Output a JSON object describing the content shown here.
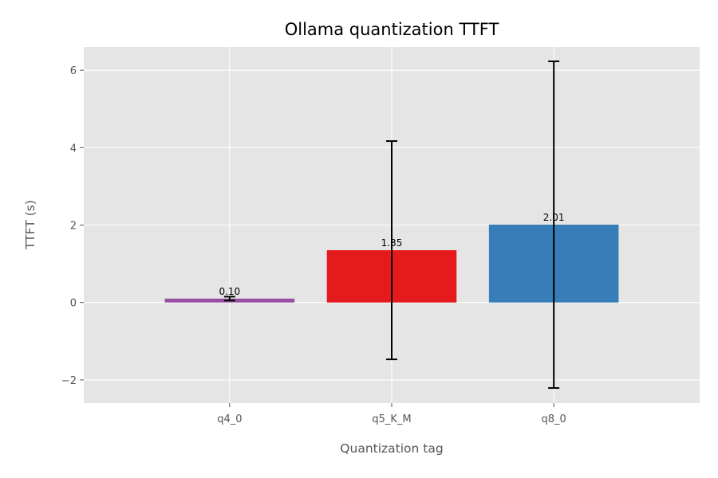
{
  "chart_data": {
    "type": "bar",
    "title": "Ollama quantization TTFT",
    "xlabel": "Quantization tag",
    "ylabel": "TTFT (s)",
    "categories": [
      "q4_0",
      "q5_K_M",
      "q8_0"
    ],
    "values": [
      0.1,
      1.35,
      2.01
    ],
    "data_labels": [
      "0.10",
      "1.35",
      "2.01"
    ],
    "error": [
      0.05,
      2.82,
      4.22
    ],
    "colors": [
      "#984ea3",
      "#e41a1c",
      "#377eb8"
    ],
    "ylim": [
      -2.6,
      6.6
    ],
    "yticks": [
      -2,
      0,
      2,
      4,
      6
    ],
    "ytick_labels": [
      "−2",
      "0",
      "2",
      "4",
      "6"
    ],
    "grid": true,
    "background": "#e5e5e5",
    "grid_color": "#ffffff"
  }
}
